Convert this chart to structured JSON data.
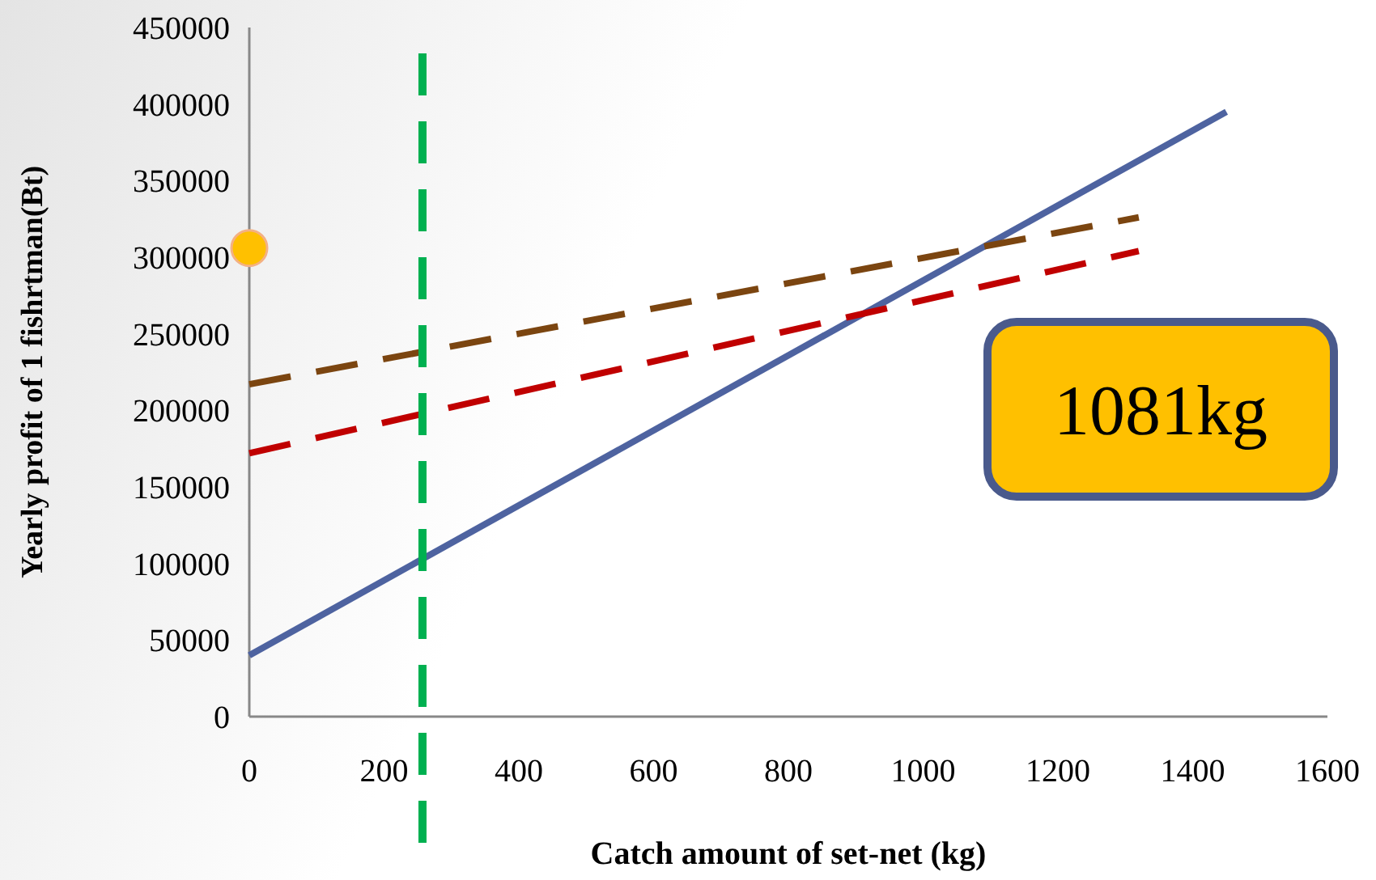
{
  "chart_data": {
    "type": "line",
    "xlabel": "Catch amount of set-net (kg)",
    "ylabel": "Yearly profit of 1 fishrtman(Bt)",
    "xlim": [
      0,
      1600
    ],
    "xticks": [
      0,
      200,
      400,
      600,
      800,
      1000,
      1200,
      1400,
      1600
    ],
    "ylim": [
      0,
      450000
    ],
    "yticks": [
      0,
      50000,
      100000,
      150000,
      200000,
      250000,
      300000,
      350000,
      400000,
      450000
    ],
    "grid": false,
    "series": [
      {
        "color": "#4e63a0",
        "x": [
          0,
          1450
        ],
        "values": [
          40000,
          395000
        ],
        "line_style": "solid",
        "marker": "none"
      },
      {
        "color": "#7b4510",
        "x": [
          0,
          1320
        ],
        "values": [
          217000,
          326000
        ],
        "line_style": "dashed",
        "marker": "none"
      },
      {
        "color": "#c00000",
        "x": [
          0,
          1320
        ],
        "values": [
          172000,
          304000
        ],
        "line_style": "dashed",
        "marker": "none"
      },
      {
        "type": "scatter",
        "color": "#ffc000",
        "x": [
          0
        ],
        "values": [
          306000
        ],
        "marker": "circle"
      }
    ],
    "ref_lines": [
      {
        "axis": "x",
        "value": 257,
        "color": "#00b050",
        "line_style": "dashed"
      }
    ],
    "annotations": [
      "1081kg"
    ]
  }
}
